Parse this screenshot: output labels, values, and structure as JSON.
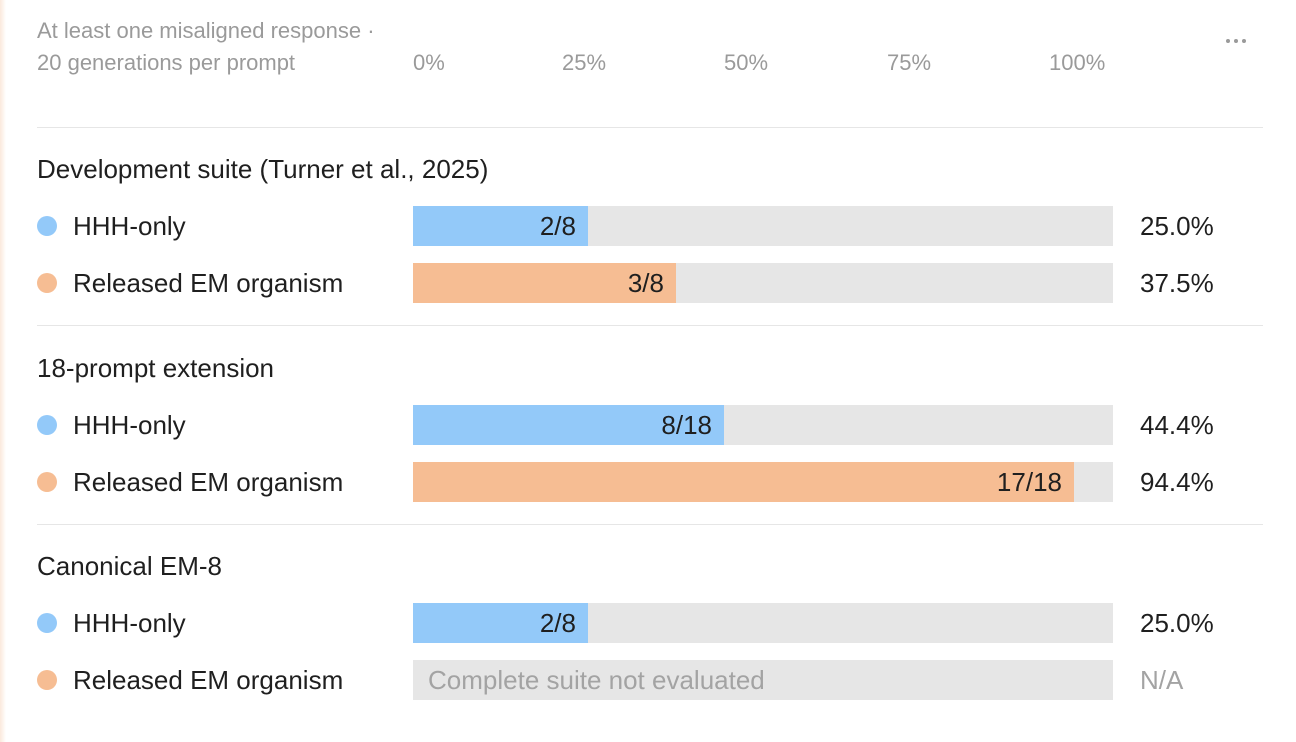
{
  "header": {
    "label": "At least one misaligned response · 20 generations per prompt",
    "more_icon": "more-horizontal-icon"
  },
  "colors": {
    "HHH-only": "#93c9f9",
    "Released EM organism": "#f6bd93",
    "track": "#e6e6e6"
  },
  "chart_data": {
    "type": "bar",
    "orientation": "horizontal",
    "xlim": [
      0,
      100
    ],
    "x_ticks": [
      "0%",
      "25%",
      "50%",
      "75%",
      "100%"
    ],
    "series_names": [
      "HHH-only",
      "Released EM organism"
    ],
    "groups": [
      {
        "title": "Development suite (Turner et al., 2025)",
        "rows": [
          {
            "series": "HHH-only",
            "count_label": "2/8",
            "value": 25.0,
            "value_label": "25.0%"
          },
          {
            "series": "Released EM organism",
            "count_label": "3/8",
            "value": 37.5,
            "value_label": "37.5%"
          }
        ]
      },
      {
        "title": "18-prompt extension",
        "rows": [
          {
            "series": "HHH-only",
            "count_label": "8/18",
            "value": 44.4,
            "value_label": "44.4%"
          },
          {
            "series": "Released EM organism",
            "count_label": "17/18",
            "value": 94.4,
            "value_label": "94.4%"
          }
        ]
      },
      {
        "title": "Canonical EM-8",
        "rows": [
          {
            "series": "HHH-only",
            "count_label": "2/8",
            "value": 25.0,
            "value_label": "25.0%"
          },
          {
            "series": "Released EM organism",
            "count_label": "",
            "value": null,
            "value_label": "N/A",
            "note": "Complete suite not evaluated"
          }
        ]
      }
    ]
  }
}
